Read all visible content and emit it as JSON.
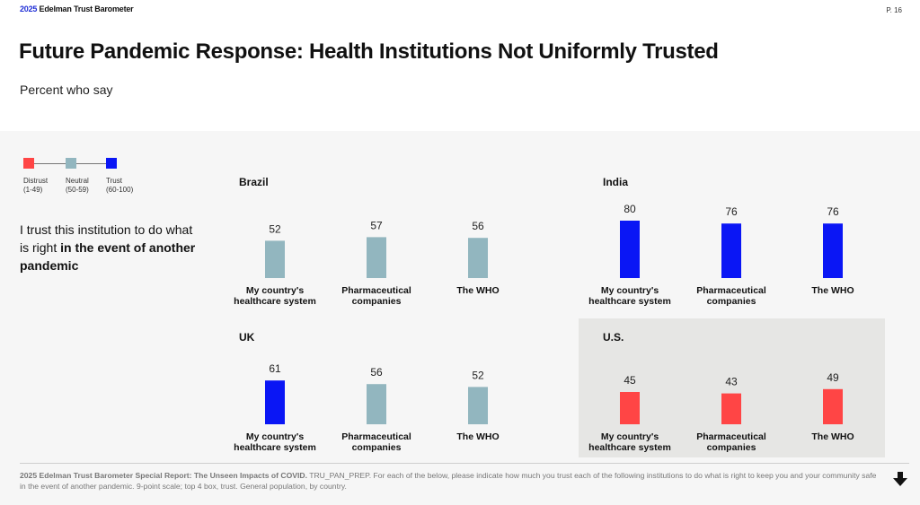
{
  "header": {
    "brand_year": "2025",
    "brand_name": "Edelman Trust Barometer",
    "page": "P. 16",
    "title": "Future Pandemic Response: Health Institutions Not Uniformly Trusted",
    "subtitle": "Percent who say"
  },
  "legend": {
    "items": [
      {
        "label": "Distrust",
        "range": "(1-49)",
        "color": "#ff4545"
      },
      {
        "label": "Neutral",
        "range": "(50-59)",
        "color": "#92b6bf"
      },
      {
        "label": "Trust",
        "range": "(60-100)",
        "color": "#0a16f5"
      }
    ]
  },
  "statement": {
    "text_plain": "I trust this institution to do what is right ",
    "text_bold": "in the event of another pandemic"
  },
  "colors": {
    "distrust": "#ff4545",
    "neutral": "#92b6bf",
    "trust": "#0a16f5"
  },
  "chart_data": [
    {
      "type": "bar",
      "title": "Brazil",
      "categories": [
        "My country's healthcare system",
        "Pharmaceutical companies",
        "The WHO"
      ],
      "values": [
        52,
        57,
        56
      ]
    },
    {
      "type": "bar",
      "title": "India",
      "categories": [
        "My country's healthcare system",
        "Pharmaceutical companies",
        "The WHO"
      ],
      "values": [
        80,
        76,
        76
      ]
    },
    {
      "type": "bar",
      "title": "UK",
      "categories": [
        "My country's healthcare system",
        "Pharmaceutical companies",
        "The WHO"
      ],
      "values": [
        61,
        56,
        52
      ]
    },
    {
      "type": "bar",
      "title": "U.S.",
      "categories": [
        "My country's healthcare system",
        "Pharmaceutical companies",
        "The WHO"
      ],
      "values": [
        45,
        43,
        49
      ],
      "highlighted": true
    }
  ],
  "footer": {
    "source_bold": "2025 Edelman Trust Barometer Special Report: The Unseen Impacts of COVID.",
    "source_text": " TRU_PAN_PREP. For each of the below, please indicate how much you trust each of the following institutions to do what is right to keep you and your community safe in the event of another pandemic. 9-point scale; top 4 box, trust. General population, by country."
  }
}
